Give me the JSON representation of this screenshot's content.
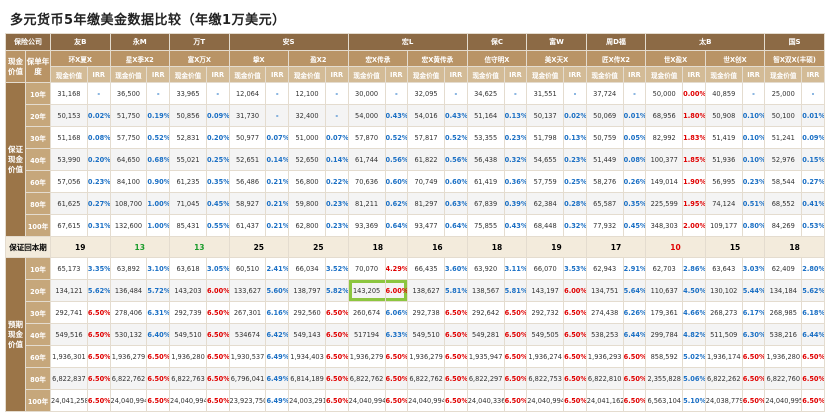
{
  "title": "多元货币5年缴美金数据比较（年缴1万美元）",
  "header": {
    "company_label": "保险公司",
    "cash_value_label": "现金价值",
    "policy_year_label": "保单年度",
    "irr_label": "IRR",
    "companies": [
      {
        "name": "友B",
        "products": [
          "环X夏X"
        ]
      },
      {
        "name": "永M",
        "products": [
          "星X季X2"
        ]
      },
      {
        "name": "万T",
        "products": [
          "富X万X"
        ]
      },
      {
        "name": "安S",
        "products": [
          "挚X",
          "盈X2"
        ]
      },
      {
        "name": "宏L",
        "products": [
          "宏X传承",
          "宏X黄传承"
        ]
      },
      {
        "name": "保C",
        "products": [
          "信守明X"
        ]
      },
      {
        "name": "富W",
        "products": [
          "美X天X"
        ]
      },
      {
        "name": "周D福",
        "products": [
          "匠X传X2"
        ]
      },
      {
        "name": "太B",
        "products": [
          "世X盈X",
          "世X创X"
        ]
      },
      {
        "name": "国S",
        "products": [
          "智X双X(丰硕)"
        ]
      }
    ]
  },
  "guaranteed": {
    "label": "保证现金价值",
    "rows": [
      {
        "year": "10年",
        "cells": [
          [
            "31,168",
            "-"
          ],
          [
            "36,500",
            "-"
          ],
          [
            "33,965",
            "-"
          ],
          [
            "12,064",
            "-"
          ],
          [
            "12,100",
            "-"
          ],
          [
            "30,000",
            "-"
          ],
          [
            "32,095",
            "-"
          ],
          [
            "34,625",
            "-"
          ],
          [
            "31,551",
            "-"
          ],
          [
            "37,724",
            "-"
          ],
          [
            "50,000",
            "0.00%"
          ],
          [
            "40,859",
            "-"
          ],
          [
            "25,000",
            "-"
          ]
        ]
      },
      {
        "year": "20年",
        "cells": [
          [
            "50,153",
            "0.02%"
          ],
          [
            "51,750",
            "0.19%"
          ],
          [
            "50,856",
            "0.09%"
          ],
          [
            "31,730",
            "-"
          ],
          [
            "32,400",
            "-"
          ],
          [
            "54,000",
            "0.43%"
          ],
          [
            "54,016",
            "0.43%"
          ],
          [
            "51,164",
            "0.13%"
          ],
          [
            "50,137",
            "0.02%"
          ],
          [
            "50,069",
            "0.01%"
          ],
          [
            "68,956",
            "1.80%"
          ],
          [
            "50,908",
            "0.10%"
          ],
          [
            "50,100",
            "0.01%"
          ]
        ]
      },
      {
        "year": "30年",
        "cells": [
          [
            "51,168",
            "0.08%"
          ],
          [
            "57,750",
            "0.52%"
          ],
          [
            "52,831",
            "0.20%"
          ],
          [
            "50,977",
            "0.07%"
          ],
          [
            "51,000",
            "0.07%"
          ],
          [
            "57,870",
            "0.52%"
          ],
          [
            "57,817",
            "0.52%"
          ],
          [
            "53,355",
            "0.23%"
          ],
          [
            "51,798",
            "0.13%"
          ],
          [
            "50,759",
            "0.05%"
          ],
          [
            "82,992",
            "1.83%"
          ],
          [
            "51,419",
            "0.10%"
          ],
          [
            "51,241",
            "0.09%"
          ]
        ]
      },
      {
        "year": "40年",
        "cells": [
          [
            "53,990",
            "0.20%"
          ],
          [
            "64,650",
            "0.68%"
          ],
          [
            "55,021",
            "0.25%"
          ],
          [
            "52,651",
            "0.14%"
          ],
          [
            "52,650",
            "0.14%"
          ],
          [
            "61,744",
            "0.56%"
          ],
          [
            "61,822",
            "0.56%"
          ],
          [
            "56,438",
            "0.32%"
          ],
          [
            "54,655",
            "0.23%"
          ],
          [
            "51,449",
            "0.08%"
          ],
          [
            "100,377",
            "1.85%"
          ],
          [
            "51,936",
            "0.10%"
          ],
          [
            "52,976",
            "0.15%"
          ]
        ]
      },
      {
        "year": "60年",
        "cells": [
          [
            "57,056",
            "0.23%"
          ],
          [
            "84,100",
            "0.90%"
          ],
          [
            "61,235",
            "0.35%"
          ],
          [
            "56,486",
            "0.21%"
          ],
          [
            "56,800",
            "0.22%"
          ],
          [
            "70,636",
            "0.60%"
          ],
          [
            "70,749",
            "0.60%"
          ],
          [
            "61,419",
            "0.36%"
          ],
          [
            "57,759",
            "0.25%"
          ],
          [
            "58,276",
            "0.26%"
          ],
          [
            "149,014",
            "1.90%"
          ],
          [
            "56,995",
            "0.23%"
          ],
          [
            "58,544",
            "0.27%"
          ]
        ]
      },
      {
        "year": "80年",
        "cells": [
          [
            "61,625",
            "0.27%"
          ],
          [
            "108,700",
            "1.00%"
          ],
          [
            "71,045",
            "0.45%"
          ],
          [
            "58,927",
            "0.21%"
          ],
          [
            "59,800",
            "0.23%"
          ],
          [
            "81,211",
            "0.62%"
          ],
          [
            "81,297",
            "0.63%"
          ],
          [
            "67,839",
            "0.39%"
          ],
          [
            "62,384",
            "0.28%"
          ],
          [
            "65,587",
            "0.35%"
          ],
          [
            "225,599",
            "1.95%"
          ],
          [
            "74,124",
            "0.51%"
          ],
          [
            "68,552",
            "0.41%"
          ]
        ]
      },
      {
        "year": "100年",
        "cells": [
          [
            "67,615",
            "0.31%"
          ],
          [
            "132,600",
            "1.00%"
          ],
          [
            "85,431",
            "0.55%"
          ],
          [
            "61,437",
            "0.21%"
          ],
          [
            "62,800",
            "0.23%"
          ],
          [
            "93,369",
            "0.64%"
          ],
          [
            "93,477",
            "0.64%"
          ],
          [
            "75,855",
            "0.43%"
          ],
          [
            "68,448",
            "0.32%"
          ],
          [
            "77,932",
            "0.45%"
          ],
          [
            "348,303",
            "2.00%"
          ],
          [
            "109,177",
            "0.80%"
          ],
          [
            "84,269",
            "0.53%"
          ]
        ]
      }
    ]
  },
  "payback": {
    "label": "保证回本期",
    "values": [
      19,
      13,
      13,
      25,
      25,
      18,
      16,
      18,
      19,
      17,
      10,
      15,
      18
    ]
  },
  "projected": {
    "label": "预期现金价值",
    "rows": [
      {
        "year": "10年",
        "cells": [
          [
            "65,173",
            "3.35%"
          ],
          [
            "63,892",
            "3.10%"
          ],
          [
            "63,618",
            "3.05%"
          ],
          [
            "60,510",
            "2.41%"
          ],
          [
            "66,034",
            "3.52%"
          ],
          [
            "70,070",
            "4.29%"
          ],
          [
            "66,435",
            "3.60%"
          ],
          [
            "63,920",
            "3.11%"
          ],
          [
            "66,070",
            "3.53%"
          ],
          [
            "62,943",
            "2.91%"
          ],
          [
            "62,703",
            "2.86%"
          ],
          [
            "63,643",
            "3.03%"
          ],
          [
            "62,409",
            "2.80%"
          ]
        ]
      },
      {
        "year": "20年",
        "cells": [
          [
            "134,121",
            "5.62%"
          ],
          [
            "136,484",
            "5.72%"
          ],
          [
            "143,203",
            "6.00%"
          ],
          [
            "133,627",
            "5.60%"
          ],
          [
            "138,797",
            "5.82%"
          ],
          [
            "143,205",
            "6.00%"
          ],
          [
            "138,627",
            "5.81%"
          ],
          [
            "138,567",
            "5.81%"
          ],
          [
            "143,197",
            "6.00%"
          ],
          [
            "134,751",
            "5.64%"
          ],
          [
            "110,637",
            "4.50%"
          ],
          [
            "130,102",
            "5.44%"
          ],
          [
            "134,184",
            "5.62%"
          ]
        ]
      },
      {
        "year": "30年",
        "cells": [
          [
            "292,741",
            "6.50%"
          ],
          [
            "278,406",
            "6.31%"
          ],
          [
            "292,739",
            "6.50%"
          ],
          [
            "267,301",
            "6.16%"
          ],
          [
            "292,560",
            "6.50%"
          ],
          [
            "260,674",
            "6.06%"
          ],
          [
            "292,738",
            "6.50%"
          ],
          [
            "292,642",
            "6.50%"
          ],
          [
            "292,732",
            "6.50%"
          ],
          [
            "274,438",
            "6.26%"
          ],
          [
            "179,361",
            "4.66%"
          ],
          [
            "268,273",
            "6.17%"
          ],
          [
            "268,985",
            "6.18%"
          ]
        ]
      },
      {
        "year": "40年",
        "cells": [
          [
            "549,516",
            "6.50%"
          ],
          [
            "530,132",
            "6.40%"
          ],
          [
            "549,510",
            "6.50%"
          ],
          [
            "534674",
            "6.42%"
          ],
          [
            "549,143",
            "6.50%"
          ],
          [
            "517194",
            "6.33%"
          ],
          [
            "549,510",
            "6.50%"
          ],
          [
            "549,281",
            "6.50%"
          ],
          [
            "549,505",
            "6.50%"
          ],
          [
            "538,253",
            "6.44%"
          ],
          [
            "299,784",
            "4.82%"
          ],
          [
            "511,509",
            "6.30%"
          ],
          [
            "538,216",
            "6.44%"
          ]
        ]
      },
      {
        "year": "60年",
        "cells": [
          [
            "1,936,301",
            "6.50%"
          ],
          [
            "1,936,279",
            "6.50%"
          ],
          [
            "1,936,280",
            "6.50%"
          ],
          [
            "1,930,537",
            "6.49%"
          ],
          [
            "1,934,403",
            "6.50%"
          ],
          [
            "1,936,279",
            "6.50%"
          ],
          [
            "1,936,279",
            "6.50%"
          ],
          [
            "1,935,947",
            "6.50%"
          ],
          [
            "1,936,274",
            "6.50%"
          ],
          [
            "1,936,293",
            "6.50%"
          ],
          [
            "858,592",
            "5.02%"
          ],
          [
            "1,936,174",
            "6.50%"
          ],
          [
            "1,936,280",
            "6.50%"
          ]
        ]
      },
      {
        "year": "80年",
        "cells": [
          [
            "6,822,837",
            "6.50%"
          ],
          [
            "6,822,762",
            "6.50%"
          ],
          [
            "6,822,763",
            "6.50%"
          ],
          [
            "6,796,041",
            "6.49%"
          ],
          [
            "6,814,189",
            "6.50%"
          ],
          [
            "6,822,762",
            "6.50%"
          ],
          [
            "6,822,762",
            "6.50%"
          ],
          [
            "6,822,297",
            "6.50%"
          ],
          [
            "6,822,753",
            "6.50%"
          ],
          [
            "6,822,810",
            "6.50%"
          ],
          [
            "2,355,828",
            "5.06%"
          ],
          [
            "6,822,262",
            "6.50%"
          ],
          [
            "6,822,760",
            "6.50%"
          ]
        ]
      },
      {
        "year": "100年",
        "cells": [
          [
            "24,041,258",
            "6.50%"
          ],
          [
            "24,040,994",
            "6.50%"
          ],
          [
            "24,040,994",
            "6.50%"
          ],
          [
            "23,923,750",
            "6.49%"
          ],
          [
            "24,003,291",
            "6.50%"
          ],
          [
            "24,040,994",
            "6.50%"
          ],
          [
            "24,040,994",
            "6.50%"
          ],
          [
            "24,040,336",
            "6.50%"
          ],
          [
            "24,040,994",
            "6.50%"
          ],
          [
            "24,041,162",
            "6.50%"
          ],
          [
            "6,563,104",
            "5.10%"
          ],
          [
            "24,038,779",
            "6.50%"
          ],
          [
            "24,040,995",
            "6.50%"
          ]
        ]
      }
    ]
  }
}
